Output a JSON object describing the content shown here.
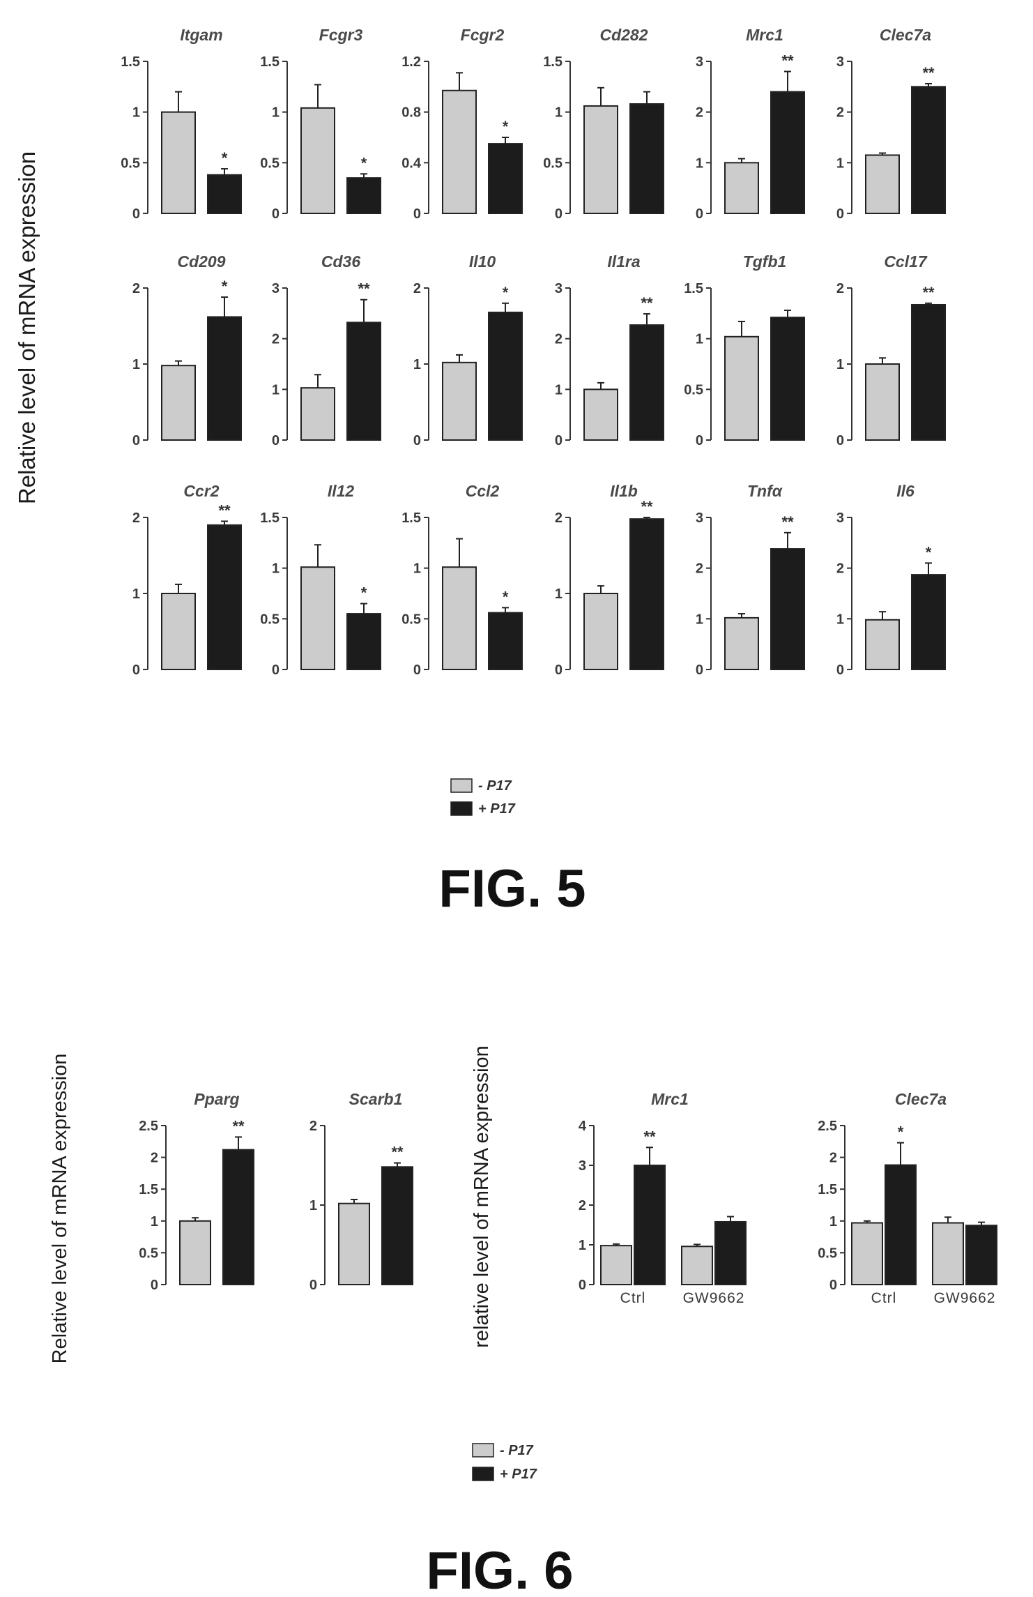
{
  "colors": {
    "minus_p17": "#cccccc",
    "plus_p17": "#1c1c1c",
    "axis": "#333333",
    "bar_outline": "#222222"
  },
  "legend": {
    "minus_label": "- P17",
    "plus_label": "+ P17"
  },
  "fig5": {
    "label": "FIG. 5",
    "ylabel": "Relative level of mRNA expression"
  },
  "fig6": {
    "label": "FIG. 6",
    "ylabel_left": "Relative level of mRNA expression",
    "ylabel_right": "relative level of mRNA expression",
    "x_categories": [
      "Ctrl",
      "GW9662"
    ]
  },
  "chart_data": [
    {
      "figure": "FIG. 5",
      "type": "bar",
      "title": "Itgam",
      "ylim": [
        0,
        1.5
      ],
      "yticks": [
        "0",
        "0.5",
        "1",
        "1.5"
      ],
      "tickvals": [
        0,
        0.5,
        1,
        1.5
      ],
      "categories": [
        "- P17",
        "+ P17"
      ],
      "values": [
        1.0,
        0.38
      ],
      "errors": [
        0.2,
        0.06
      ],
      "significance": "*"
    },
    {
      "figure": "FIG. 5",
      "type": "bar",
      "title": "Fcgr3",
      "ylim": [
        0,
        1.5
      ],
      "yticks": [
        "0",
        "0.5",
        "1",
        "1.5"
      ],
      "tickvals": [
        0,
        0.5,
        1,
        1.5
      ],
      "categories": [
        "- P17",
        "+ P17"
      ],
      "values": [
        1.04,
        0.35
      ],
      "errors": [
        0.23,
        0.04
      ],
      "significance": "*"
    },
    {
      "figure": "FIG. 5",
      "type": "bar",
      "title": "Fcgr2",
      "ylim": [
        0,
        1.2
      ],
      "yticks": [
        "0",
        "0.4",
        "0.8",
        "1.2"
      ],
      "tickvals": [
        0,
        0.4,
        0.8,
        1.2
      ],
      "categories": [
        "- P17",
        "+ P17"
      ],
      "values": [
        0.97,
        0.55
      ],
      "errors": [
        0.14,
        0.05
      ],
      "significance": "*"
    },
    {
      "figure": "FIG. 5",
      "type": "bar",
      "title": "Cd282",
      "ylim": [
        0,
        1.5
      ],
      "yticks": [
        "0",
        "0.5",
        "1",
        "1.5"
      ],
      "tickvals": [
        0,
        0.5,
        1,
        1.5
      ],
      "categories": [
        "- P17",
        "+ P17"
      ],
      "values": [
        1.06,
        1.08
      ],
      "errors": [
        0.18,
        0.12
      ],
      "significance": ""
    },
    {
      "figure": "FIG. 5",
      "type": "bar",
      "title": "Mrc1",
      "ylim": [
        0,
        3
      ],
      "yticks": [
        "0",
        "1",
        "2",
        "3"
      ],
      "tickvals": [
        0,
        1,
        2,
        3
      ],
      "categories": [
        "- P17",
        "+ P17"
      ],
      "values": [
        1.0,
        2.4
      ],
      "errors": [
        0.08,
        0.4
      ],
      "significance": "**"
    },
    {
      "figure": "FIG. 5",
      "type": "bar",
      "title": "Clec7a",
      "ylim": [
        0,
        3
      ],
      "yticks": [
        "0",
        "1",
        "2",
        "3"
      ],
      "tickvals": [
        0,
        1,
        2,
        3
      ],
      "categories": [
        "- P17",
        "+ P17"
      ],
      "values": [
        1.15,
        2.5
      ],
      "errors": [
        0.04,
        0.06
      ],
      "significance": "**"
    },
    {
      "figure": "FIG. 5",
      "type": "bar",
      "title": "Cd209",
      "ylim": [
        0,
        2
      ],
      "yticks": [
        "0",
        "1",
        "2"
      ],
      "tickvals": [
        0,
        1,
        2
      ],
      "categories": [
        "- P17",
        "+ P17"
      ],
      "values": [
        0.98,
        1.62
      ],
      "errors": [
        0.06,
        0.26
      ],
      "significance": "*"
    },
    {
      "figure": "FIG. 5",
      "type": "bar",
      "title": "Cd36",
      "ylim": [
        0,
        3
      ],
      "yticks": [
        "0",
        "1",
        "2",
        "3"
      ],
      "tickvals": [
        0,
        1,
        2,
        3
      ],
      "categories": [
        "- P17",
        "+ P17"
      ],
      "values": [
        1.03,
        2.32
      ],
      "errors": [
        0.26,
        0.45
      ],
      "significance": "**"
    },
    {
      "figure": "FIG. 5",
      "type": "bar",
      "title": "Il10",
      "ylim": [
        0,
        2
      ],
      "yticks": [
        "0",
        "1",
        "2"
      ],
      "tickvals": [
        0,
        1,
        2
      ],
      "categories": [
        "- P17",
        "+ P17"
      ],
      "values": [
        1.02,
        1.68
      ],
      "errors": [
        0.1,
        0.12
      ],
      "significance": "*"
    },
    {
      "figure": "FIG. 5",
      "type": "bar",
      "title": "Il1ra",
      "ylim": [
        0,
        3
      ],
      "yticks": [
        "0",
        "1",
        "2",
        "3"
      ],
      "tickvals": [
        0,
        1,
        2,
        3
      ],
      "categories": [
        "- P17",
        "+ P17"
      ],
      "values": [
        1.0,
        2.27
      ],
      "errors": [
        0.13,
        0.22
      ],
      "significance": "**"
    },
    {
      "figure": "FIG. 5",
      "type": "bar",
      "title": "Tgfb1",
      "ylim": [
        0,
        1.5
      ],
      "yticks": [
        "0",
        "0.5",
        "1",
        "1.5"
      ],
      "tickvals": [
        0,
        0.5,
        1,
        1.5
      ],
      "categories": [
        "- P17",
        "+ P17"
      ],
      "values": [
        1.02,
        1.21
      ],
      "errors": [
        0.15,
        0.07
      ],
      "significance": ""
    },
    {
      "figure": "FIG. 5",
      "type": "bar",
      "title": "Ccl17",
      "ylim": [
        0,
        2
      ],
      "yticks": [
        "0",
        "1",
        "2"
      ],
      "tickvals": [
        0,
        1,
        2
      ],
      "categories": [
        "- P17",
        "+ P17"
      ],
      "values": [
        1.0,
        1.78
      ],
      "errors": [
        0.08,
        0.02
      ],
      "significance": "**"
    },
    {
      "figure": "FIG. 5",
      "type": "bar",
      "title": "Ccr2",
      "ylim": [
        0,
        2
      ],
      "yticks": [
        "0",
        "1",
        "2"
      ],
      "tickvals": [
        0,
        1,
        2
      ],
      "categories": [
        "- P17",
        "+ P17"
      ],
      "values": [
        1.0,
        1.9
      ],
      "errors": [
        0.12,
        0.05
      ],
      "significance": "**"
    },
    {
      "figure": "FIG. 5",
      "type": "bar",
      "title": "Il12",
      "ylim": [
        0,
        1.5
      ],
      "yticks": [
        "0",
        "0.5",
        "1",
        "1.5"
      ],
      "tickvals": [
        0,
        0.5,
        1,
        1.5
      ],
      "categories": [
        "- P17",
        "+ P17"
      ],
      "values": [
        1.01,
        0.55
      ],
      "errors": [
        0.22,
        0.1
      ],
      "significance": "*"
    },
    {
      "figure": "FIG. 5",
      "type": "bar",
      "title": "Ccl2",
      "ylim": [
        0,
        1.5
      ],
      "yticks": [
        "0",
        "0.5",
        "1",
        "1.5"
      ],
      "tickvals": [
        0,
        0.5,
        1,
        1.5
      ],
      "categories": [
        "- P17",
        "+ P17"
      ],
      "values": [
        1.01,
        0.56
      ],
      "errors": [
        0.28,
        0.05
      ],
      "significance": "*"
    },
    {
      "figure": "FIG. 5",
      "type": "bar",
      "title": "Il1b",
      "ylim": [
        0,
        2
      ],
      "yticks": [
        "0",
        "1",
        "2"
      ],
      "tickvals": [
        0,
        1,
        2
      ],
      "categories": [
        "- P17",
        "+ P17"
      ],
      "values": [
        1.0,
        1.98
      ],
      "errors": [
        0.1,
        0.02
      ],
      "significance": "**"
    },
    {
      "figure": "FIG. 5",
      "type": "bar",
      "title": "Tnfα",
      "ylim": [
        0,
        3
      ],
      "yticks": [
        "0",
        "1",
        "2",
        "3"
      ],
      "tickvals": [
        0,
        1,
        2,
        3
      ],
      "categories": [
        "- P17",
        "+ P17"
      ],
      "values": [
        1.02,
        2.38
      ],
      "errors": [
        0.08,
        0.32
      ],
      "significance": "**"
    },
    {
      "figure": "FIG. 5",
      "type": "bar",
      "title": "Il6",
      "ylim": [
        0,
        3
      ],
      "yticks": [
        "0",
        "1",
        "2",
        "3"
      ],
      "tickvals": [
        0,
        1,
        2,
        3
      ],
      "categories": [
        "- P17",
        "+ P17"
      ],
      "values": [
        0.98,
        1.87
      ],
      "errors": [
        0.16,
        0.23
      ],
      "significance": "*"
    },
    {
      "figure": "FIG. 6",
      "type": "bar",
      "title": "Pparg",
      "ylim": [
        0,
        2.5
      ],
      "yticks": [
        "0",
        "0.5",
        "1",
        "1.5",
        "2",
        "2.5"
      ],
      "tickvals": [
        0,
        0.5,
        1,
        1.5,
        2,
        2.5
      ],
      "categories": [
        "- P17",
        "+ P17"
      ],
      "values": [
        1.0,
        2.12
      ],
      "errors": [
        0.05,
        0.2
      ],
      "significance": "**"
    },
    {
      "figure": "FIG. 6",
      "type": "bar",
      "title": "Scarb1",
      "ylim": [
        0,
        2
      ],
      "yticks": [
        "0",
        "1",
        "2"
      ],
      "tickvals": [
        0,
        1,
        2
      ],
      "categories": [
        "- P17",
        "+ P17"
      ],
      "values": [
        1.02,
        1.48
      ],
      "errors": [
        0.05,
        0.05
      ],
      "significance": "**"
    },
    {
      "figure": "FIG. 6",
      "type": "bar",
      "title": "Mrc1",
      "ylim": [
        0,
        4
      ],
      "yticks": [
        "0",
        "1",
        "2",
        "3",
        "4"
      ],
      "tickvals": [
        0,
        1,
        2,
        3,
        4
      ],
      "categories": [
        "Ctrl",
        "GW9662"
      ],
      "series": [
        {
          "name": "- P17",
          "values": [
            0.98,
            0.96
          ],
          "errors": [
            0.04,
            0.05
          ]
        },
        {
          "name": "+ P17",
          "values": [
            3.0,
            1.58
          ],
          "errors": [
            0.45,
            0.13
          ]
        }
      ],
      "significance": [
        "**",
        ""
      ]
    },
    {
      "figure": "FIG. 6",
      "type": "bar",
      "title": "Clec7a",
      "ylim": [
        0,
        2.5
      ],
      "yticks": [
        "0",
        "0.5",
        "1",
        "1.5",
        "2",
        "2.5"
      ],
      "tickvals": [
        0,
        0.5,
        1,
        1.5,
        2,
        2.5
      ],
      "categories": [
        "Ctrl",
        "GW9662"
      ],
      "series": [
        {
          "name": "- P17",
          "values": [
            0.97,
            0.97
          ],
          "errors": [
            0.03,
            0.09
          ]
        },
        {
          "name": "+ P17",
          "values": [
            1.88,
            0.93
          ],
          "errors": [
            0.35,
            0.05
          ]
        }
      ],
      "significance": [
        "*",
        ""
      ]
    }
  ]
}
